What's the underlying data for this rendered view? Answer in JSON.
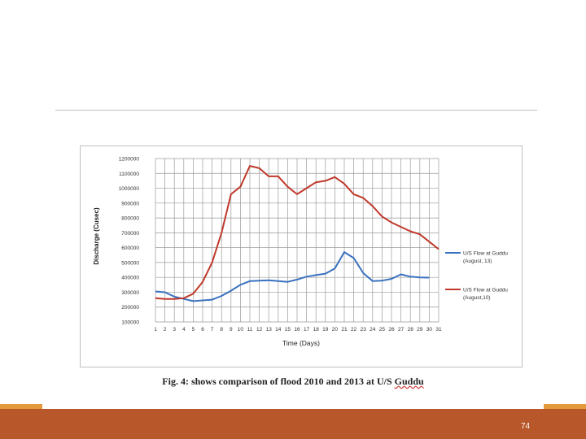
{
  "colors": {
    "series_2013": "#3a72c0",
    "series_2010": "#c0392b",
    "footer": "#b8572a",
    "footer_accent": "#e39a3c"
  },
  "caption": {
    "text": "Fig. 4: shows comparison of flood 2010 and 2013 at U/S ",
    "underlined_word": "Guddu"
  },
  "page_number": "74",
  "chart_data": {
    "type": "line",
    "title": "",
    "xlabel": "Time (Days)",
    "ylabel": "Discharge (Cusec)",
    "ylim": [
      100000,
      1200000
    ],
    "y_ticks": [
      1200000,
      1100000,
      1000000,
      900000,
      800000,
      700000,
      600000,
      500000,
      400000,
      300000,
      200000,
      100000
    ],
    "y_tick_labels": [
      "1200000",
      "1100000",
      "1000000",
      "900000",
      "800000",
      "700000",
      "600000",
      "500000",
      "400000",
      "300000",
      "200000",
      "100000"
    ],
    "x": [
      1,
      2,
      3,
      4,
      5,
      6,
      7,
      8,
      9,
      10,
      11,
      12,
      13,
      14,
      15,
      16,
      17,
      18,
      19,
      20,
      21,
      22,
      23,
      24,
      25,
      26,
      27,
      28,
      29,
      30,
      31
    ],
    "x_tick_labels": [
      "1",
      "2",
      "3",
      "4",
      "5",
      "6",
      "7",
      "8",
      "9",
      "10",
      "11",
      "12",
      "13",
      "14",
      "15",
      "16",
      "17",
      "18",
      "19",
      "20",
      "21",
      "22",
      "23",
      "24",
      "25",
      "26",
      "27",
      "28",
      "29",
      "30",
      "31"
    ],
    "grid": true,
    "legend_position": "right",
    "series": [
      {
        "name": "U/S Flow at Guddu",
        "name_line2": "(August, 13)",
        "color": "#3a72c0",
        "values": [
          305000,
          300000,
          270000,
          255000,
          240000,
          245000,
          250000,
          275000,
          310000,
          350000,
          375000,
          378000,
          380000,
          375000,
          370000,
          385000,
          405000,
          415000,
          425000,
          460000,
          570000,
          530000,
          430000,
          375000,
          378000,
          390000,
          420000,
          405000,
          400000,
          398000,
          null
        ]
      },
      {
        "name": "U/S Flow at Guddu",
        "name_line2": "(August,10)",
        "color": "#c0392b",
        "values": [
          260000,
          255000,
          255000,
          260000,
          290000,
          370000,
          500000,
          700000,
          960000,
          1010000,
          1150000,
          1135000,
          1080000,
          1080000,
          1010000,
          960000,
          1000000,
          1040000,
          1050000,
          1075000,
          1030000,
          960000,
          935000,
          880000,
          810000,
          770000,
          740000,
          710000,
          690000,
          640000,
          590000
        ]
      }
    ]
  }
}
